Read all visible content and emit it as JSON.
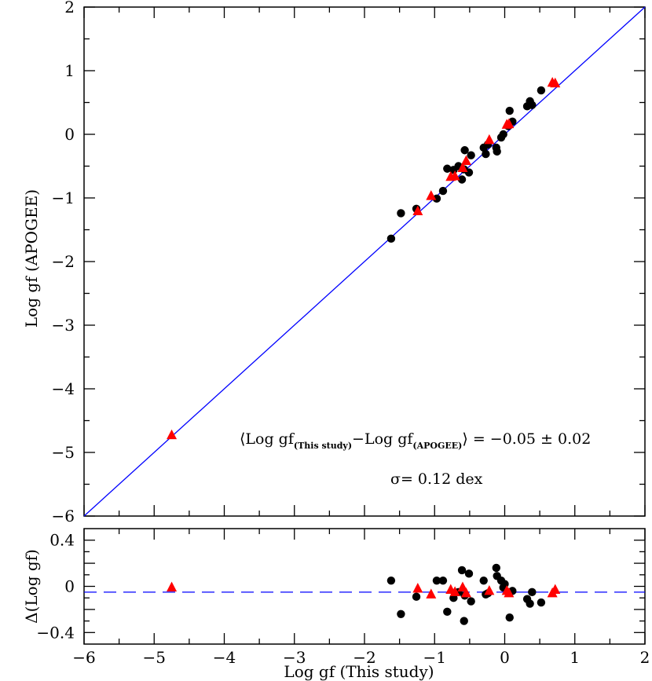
{
  "chart_data": [
    {
      "type": "scatter",
      "panel": "main",
      "xlabel": "",
      "ylabel": "Log gf (APOGEE)",
      "xlim": [
        -6,
        2
      ],
      "ylim": [
        -6,
        2
      ],
      "x_ticks": [
        "−6",
        "−5",
        "−4",
        "−3",
        "−2",
        "−1",
        "0",
        "1",
        "2"
      ],
      "y_ticks": [
        "−6",
        "−5",
        "−4",
        "−3",
        "−2",
        "−1",
        "0",
        "1",
        "2"
      ],
      "reference_line": {
        "type": "identity",
        "color": "#0000ff"
      },
      "annotation": {
        "open": "⟨Log gf",
        "sub1": "(This study)",
        "mid": "−Log gf",
        "sub2": "(APOGEE)",
        "close": "⟩ = −0.05 ± 0.02",
        "sigma": "σ= 0.12 dex"
      },
      "series": [
        {
          "marker": "circle",
          "color": "#000000",
          "points": [
            [
              -1.62,
              -1.64
            ],
            [
              -1.48,
              -1.24
            ],
            [
              -1.26,
              -1.17
            ],
            [
              -0.97,
              -1.01
            ],
            [
              -0.88,
              -0.89
            ],
            [
              -0.82,
              -0.54
            ],
            [
              -0.73,
              -0.56
            ],
            [
              -0.66,
              -0.5
            ],
            [
              -0.61,
              -0.71
            ],
            [
              -0.58,
              -0.55
            ],
            [
              -0.57,
              -0.25
            ],
            [
              -0.51,
              -0.6
            ],
            [
              -0.48,
              -0.33
            ],
            [
              -0.3,
              -0.21
            ],
            [
              -0.27,
              -0.31
            ],
            [
              -0.24,
              -0.16
            ],
            [
              -0.12,
              -0.21
            ],
            [
              -0.11,
              -0.27
            ],
            [
              -0.05,
              -0.05
            ],
            [
              -0.02,
              0.0
            ],
            [
              0.05,
              0.13
            ],
            [
              0.07,
              0.37
            ],
            [
              0.11,
              0.2
            ],
            [
              0.32,
              0.44
            ],
            [
              0.36,
              0.52
            ],
            [
              0.39,
              0.46
            ],
            [
              0.52,
              0.69
            ]
          ]
        },
        {
          "marker": "triangle",
          "color": "#ff0000",
          "points": [
            [
              -4.75,
              -4.73
            ],
            [
              -1.24,
              -1.21
            ],
            [
              -1.05,
              -0.97
            ],
            [
              -0.77,
              -0.67
            ],
            [
              -0.71,
              -0.66
            ],
            [
              -0.6,
              -0.53
            ],
            [
              -0.55,
              -0.42
            ],
            [
              -0.22,
              -0.09
            ],
            [
              0.03,
              0.15
            ],
            [
              0.06,
              0.16
            ],
            [
              0.68,
              0.81
            ],
            [
              0.72,
              0.8
            ]
          ]
        }
      ]
    },
    {
      "type": "scatter",
      "panel": "residual",
      "xlabel": "Log gf (This study)",
      "ylabel": "Δ(Log gf)",
      "xlim": [
        -6,
        2
      ],
      "ylim": [
        -0.5,
        0.5
      ],
      "x_ticks": [
        "−6",
        "−5",
        "−4",
        "−3",
        "−2",
        "−1",
        "0",
        "1",
        "2"
      ],
      "y_ticks": [
        {
          "value": 0.4,
          "label": "0.4"
        },
        {
          "value": 0,
          "label": "0"
        },
        {
          "value": -0.4,
          "label": "−0.4"
        }
      ],
      "reference_line": {
        "type": "horizontal-dashed",
        "y": -0.05,
        "color": "#0000ff"
      },
      "series": [
        {
          "marker": "circle",
          "color": "#000000",
          "points": [
            [
              -1.62,
              0.05
            ],
            [
              -1.48,
              -0.24
            ],
            [
              -1.26,
              -0.09
            ],
            [
              -0.97,
              0.05
            ],
            [
              -0.88,
              0.05
            ],
            [
              -0.82,
              -0.22
            ],
            [
              -0.73,
              -0.1
            ],
            [
              -0.66,
              -0.05
            ],
            [
              -0.61,
              0.14
            ],
            [
              -0.58,
              -0.3
            ],
            [
              -0.57,
              -0.08
            ],
            [
              -0.51,
              0.11
            ],
            [
              -0.48,
              -0.13
            ],
            [
              -0.3,
              0.05
            ],
            [
              -0.27,
              -0.07
            ],
            [
              -0.24,
              -0.06
            ],
            [
              -0.12,
              0.16
            ],
            [
              -0.11,
              0.09
            ],
            [
              -0.05,
              0.05
            ],
            [
              -0.02,
              -0.01
            ],
            [
              0.0,
              0.02
            ],
            [
              0.07,
              -0.27
            ],
            [
              0.11,
              -0.04
            ],
            [
              0.32,
              -0.11
            ],
            [
              0.36,
              -0.15
            ],
            [
              0.39,
              -0.05
            ],
            [
              0.52,
              -0.14
            ]
          ]
        },
        {
          "marker": "triangle",
          "color": "#ff0000",
          "points": [
            [
              -4.75,
              -0.01
            ],
            [
              -1.24,
              -0.02
            ],
            [
              -1.05,
              -0.07
            ],
            [
              -0.77,
              -0.03
            ],
            [
              -0.71,
              -0.05
            ],
            [
              -0.6,
              -0.01
            ],
            [
              -0.55,
              -0.06
            ],
            [
              -0.22,
              -0.04
            ],
            [
              0.03,
              -0.04
            ],
            [
              0.06,
              -0.06
            ],
            [
              0.68,
              -0.06
            ],
            [
              0.72,
              -0.03
            ]
          ]
        }
      ]
    }
  ]
}
